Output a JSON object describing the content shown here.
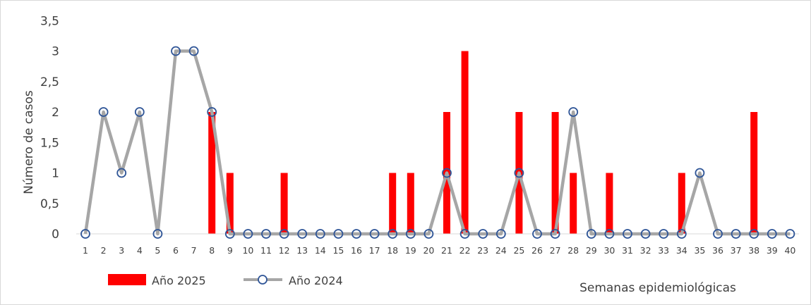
{
  "chart_data": {
    "type": "bar+line",
    "title": "",
    "xlabel": "Semanas  epidemiológicas",
    "ylabel": "Número de casos",
    "ylim": [
      0,
      3.5
    ],
    "yticks": [
      "0",
      "0,5",
      "1",
      "1,5",
      "2",
      "2,5",
      "3",
      "3,5"
    ],
    "categories": [
      "1",
      "2",
      "3",
      "4",
      "5",
      "6",
      "7",
      "8",
      "9",
      "10",
      "11",
      "12",
      "13",
      "14",
      "15",
      "16",
      "17",
      "18",
      "19",
      "20",
      "21",
      "22",
      "23",
      "24",
      "25",
      "26",
      "27",
      "28",
      "29",
      "30",
      "31",
      "32",
      "33",
      "34",
      "35",
      "36",
      "37",
      "38",
      "39",
      "40"
    ],
    "series": [
      {
        "name": "Año 2025",
        "kind": "bar",
        "color": "#ff0000",
        "values": [
          0,
          0,
          0,
          0,
          0,
          0,
          0,
          2,
          1,
          0,
          0,
          1,
          0,
          0,
          0,
          0,
          0,
          1,
          1,
          0,
          2,
          3,
          0,
          0,
          2,
          0,
          2,
          1,
          0,
          1,
          0,
          0,
          0,
          1,
          0,
          0,
          0,
          2,
          0,
          0
        ]
      },
      {
        "name": "Año 2024",
        "kind": "line",
        "color": "#a6a6a6",
        "marker_color": "#2f5597",
        "values": [
          0,
          2,
          1,
          2,
          0,
          3,
          3,
          2,
          0,
          0,
          0,
          0,
          0,
          0,
          0,
          0,
          0,
          0,
          0,
          0,
          1,
          0,
          0,
          0,
          1,
          0,
          0,
          2,
          0,
          0,
          0,
          0,
          0,
          0,
          1,
          0,
          0,
          0,
          0,
          0
        ]
      }
    ],
    "grid": false,
    "legend": "bottom-left"
  }
}
